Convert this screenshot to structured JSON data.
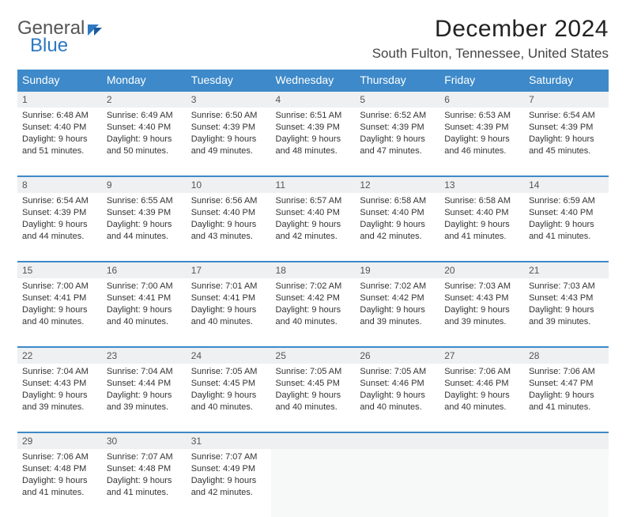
{
  "brand": {
    "word1": "General",
    "word2": "Blue"
  },
  "title": {
    "month": "December 2024",
    "location": "South Fulton, Tennessee, United States"
  },
  "colors": {
    "header_bg": "#3d89c9",
    "daynum_bg": "#eef0f1",
    "rule": "#3d89c9",
    "brand_blue": "#2e78c2"
  },
  "weekdays": [
    "Sunday",
    "Monday",
    "Tuesday",
    "Wednesday",
    "Thursday",
    "Friday",
    "Saturday"
  ],
  "days": [
    {
      "n": 1,
      "sunrise": "6:48 AM",
      "sunset": "4:40 PM",
      "daylight": "9 hours and 51 minutes."
    },
    {
      "n": 2,
      "sunrise": "6:49 AM",
      "sunset": "4:40 PM",
      "daylight": "9 hours and 50 minutes."
    },
    {
      "n": 3,
      "sunrise": "6:50 AM",
      "sunset": "4:39 PM",
      "daylight": "9 hours and 49 minutes."
    },
    {
      "n": 4,
      "sunrise": "6:51 AM",
      "sunset": "4:39 PM",
      "daylight": "9 hours and 48 minutes."
    },
    {
      "n": 5,
      "sunrise": "6:52 AM",
      "sunset": "4:39 PM",
      "daylight": "9 hours and 47 minutes."
    },
    {
      "n": 6,
      "sunrise": "6:53 AM",
      "sunset": "4:39 PM",
      "daylight": "9 hours and 46 minutes."
    },
    {
      "n": 7,
      "sunrise": "6:54 AM",
      "sunset": "4:39 PM",
      "daylight": "9 hours and 45 minutes."
    },
    {
      "n": 8,
      "sunrise": "6:54 AM",
      "sunset": "4:39 PM",
      "daylight": "9 hours and 44 minutes."
    },
    {
      "n": 9,
      "sunrise": "6:55 AM",
      "sunset": "4:39 PM",
      "daylight": "9 hours and 44 minutes."
    },
    {
      "n": 10,
      "sunrise": "6:56 AM",
      "sunset": "4:40 PM",
      "daylight": "9 hours and 43 minutes."
    },
    {
      "n": 11,
      "sunrise": "6:57 AM",
      "sunset": "4:40 PM",
      "daylight": "9 hours and 42 minutes."
    },
    {
      "n": 12,
      "sunrise": "6:58 AM",
      "sunset": "4:40 PM",
      "daylight": "9 hours and 42 minutes."
    },
    {
      "n": 13,
      "sunrise": "6:58 AM",
      "sunset": "4:40 PM",
      "daylight": "9 hours and 41 minutes."
    },
    {
      "n": 14,
      "sunrise": "6:59 AM",
      "sunset": "4:40 PM",
      "daylight": "9 hours and 41 minutes."
    },
    {
      "n": 15,
      "sunrise": "7:00 AM",
      "sunset": "4:41 PM",
      "daylight": "9 hours and 40 minutes."
    },
    {
      "n": 16,
      "sunrise": "7:00 AM",
      "sunset": "4:41 PM",
      "daylight": "9 hours and 40 minutes."
    },
    {
      "n": 17,
      "sunrise": "7:01 AM",
      "sunset": "4:41 PM",
      "daylight": "9 hours and 40 minutes."
    },
    {
      "n": 18,
      "sunrise": "7:02 AM",
      "sunset": "4:42 PM",
      "daylight": "9 hours and 40 minutes."
    },
    {
      "n": 19,
      "sunrise": "7:02 AM",
      "sunset": "4:42 PM",
      "daylight": "9 hours and 39 minutes."
    },
    {
      "n": 20,
      "sunrise": "7:03 AM",
      "sunset": "4:43 PM",
      "daylight": "9 hours and 39 minutes."
    },
    {
      "n": 21,
      "sunrise": "7:03 AM",
      "sunset": "4:43 PM",
      "daylight": "9 hours and 39 minutes."
    },
    {
      "n": 22,
      "sunrise": "7:04 AM",
      "sunset": "4:43 PM",
      "daylight": "9 hours and 39 minutes."
    },
    {
      "n": 23,
      "sunrise": "7:04 AM",
      "sunset": "4:44 PM",
      "daylight": "9 hours and 39 minutes."
    },
    {
      "n": 24,
      "sunrise": "7:05 AM",
      "sunset": "4:45 PM",
      "daylight": "9 hours and 40 minutes."
    },
    {
      "n": 25,
      "sunrise": "7:05 AM",
      "sunset": "4:45 PM",
      "daylight": "9 hours and 40 minutes."
    },
    {
      "n": 26,
      "sunrise": "7:05 AM",
      "sunset": "4:46 PM",
      "daylight": "9 hours and 40 minutes."
    },
    {
      "n": 27,
      "sunrise": "7:06 AM",
      "sunset": "4:46 PM",
      "daylight": "9 hours and 40 minutes."
    },
    {
      "n": 28,
      "sunrise": "7:06 AM",
      "sunset": "4:47 PM",
      "daylight": "9 hours and 41 minutes."
    },
    {
      "n": 29,
      "sunrise": "7:06 AM",
      "sunset": "4:48 PM",
      "daylight": "9 hours and 41 minutes."
    },
    {
      "n": 30,
      "sunrise": "7:07 AM",
      "sunset": "4:48 PM",
      "daylight": "9 hours and 41 minutes."
    },
    {
      "n": 31,
      "sunrise": "7:07 AM",
      "sunset": "4:49 PM",
      "daylight": "9 hours and 42 minutes."
    }
  ],
  "labels": {
    "sunrise": "Sunrise: ",
    "sunset": "Sunset: ",
    "daylight": "Daylight: "
  },
  "layout": {
    "first_weekday_index": 0,
    "weeks": 5,
    "trailing_blanks": 4
  }
}
